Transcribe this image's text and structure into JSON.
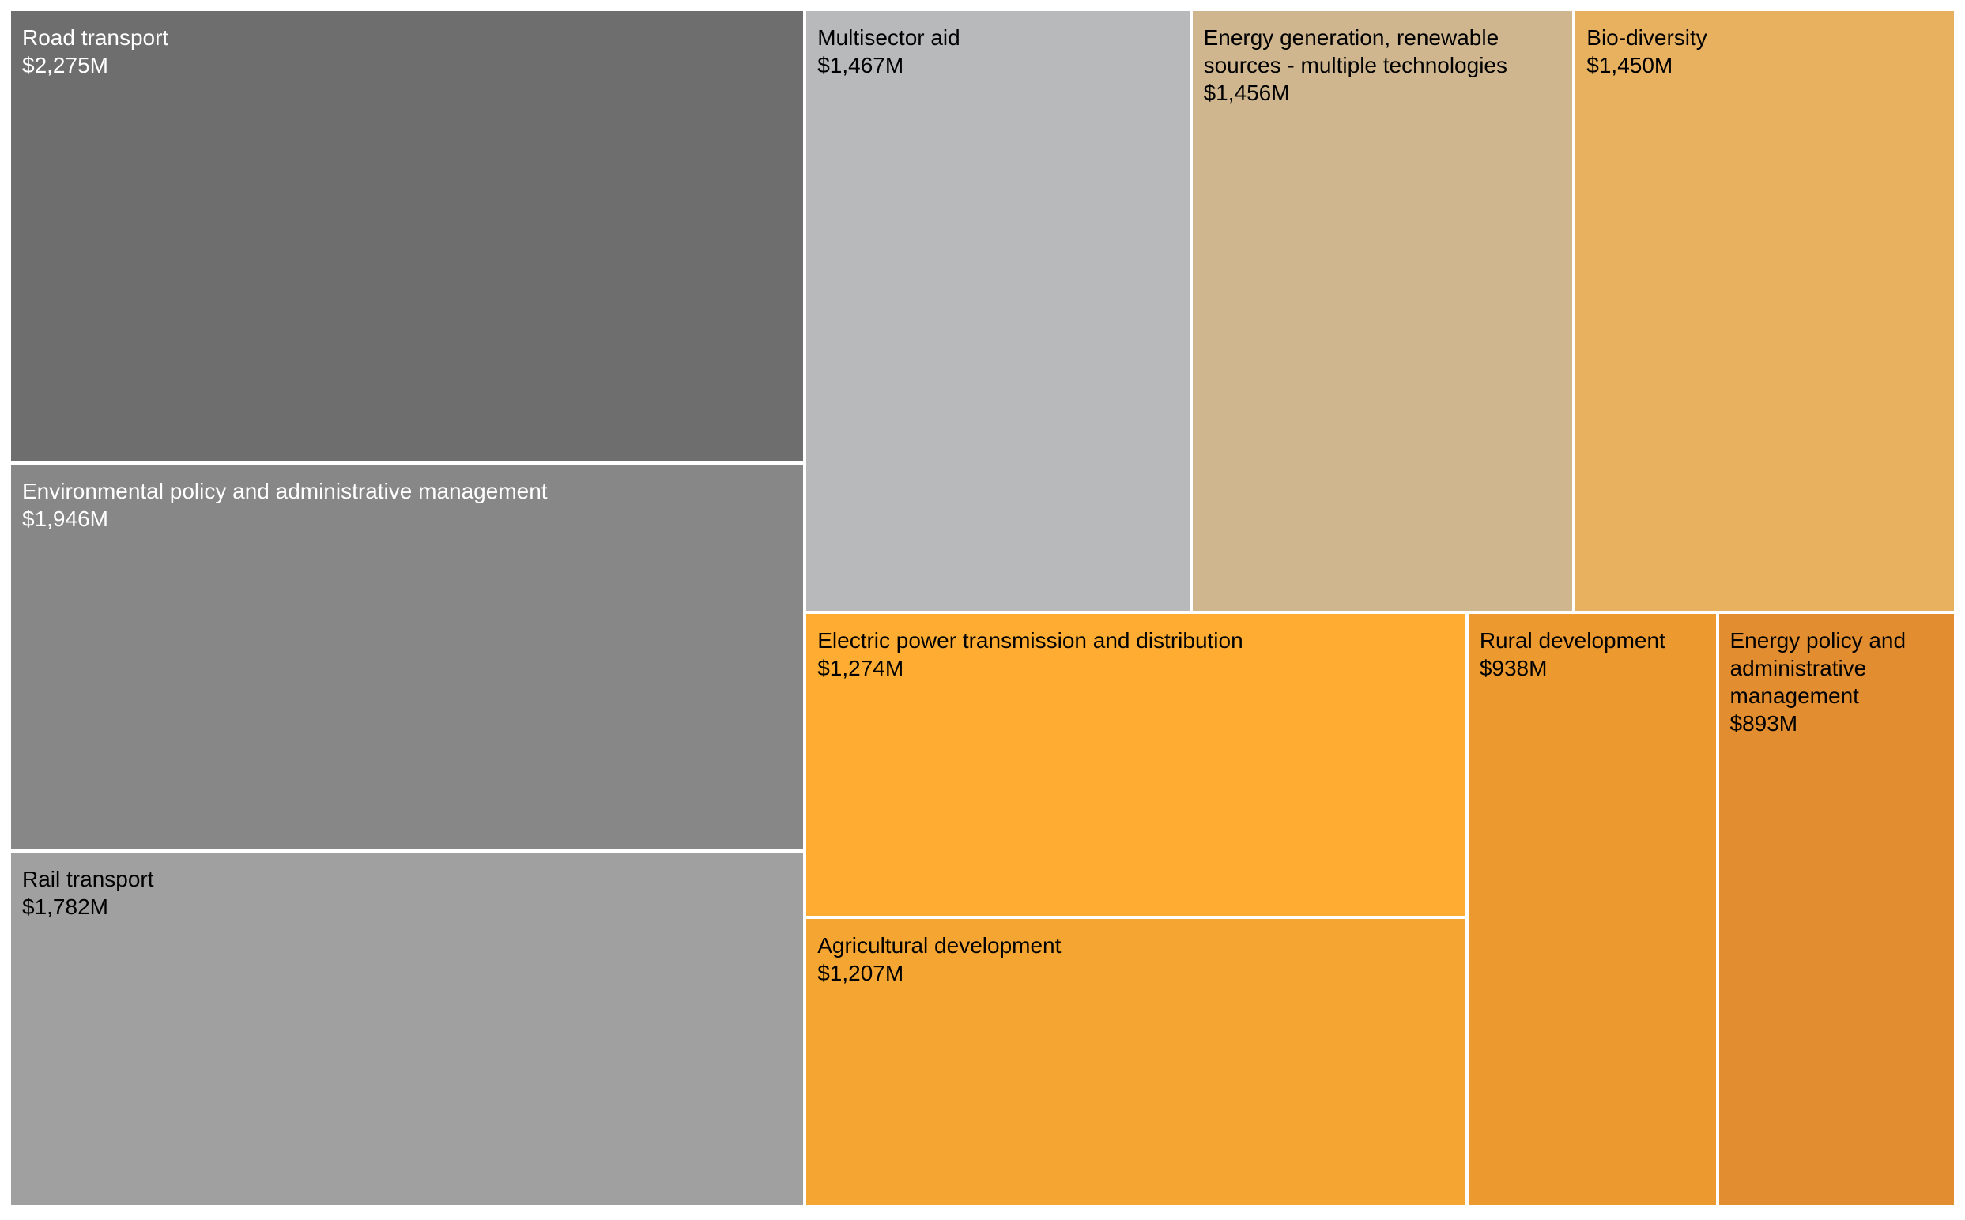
{
  "chart_data": {
    "type": "treemap",
    "title": "",
    "items": [
      {
        "label": "Road transport",
        "value": 2275,
        "value_label": "$2,275M",
        "color": "#6e6e6e",
        "text_color": "#ffffff"
      },
      {
        "label": "Environmental policy and administrative management",
        "value": 1946,
        "value_label": "$1,946M",
        "color": "#878787",
        "text_color": "#ffffff"
      },
      {
        "label": "Rail transport",
        "value": 1782,
        "value_label": "$1,782M",
        "color": "#a0a0a1",
        "text_color": "#000000"
      },
      {
        "label": "Multisector aid",
        "value": 1467,
        "value_label": "$1,467M",
        "color": "#b8b9ba",
        "text_color": "#000000"
      },
      {
        "label": "Energy generation, renewable sources - multiple technologies",
        "value": 1456,
        "value_label": "$1,456M",
        "color": "#cfb68f",
        "text_color": "#000000"
      },
      {
        "label": "Bio-diversity",
        "value": 1450,
        "value_label": "$1,450M",
        "color": "#e8b160",
        "text_color": "#000000"
      },
      {
        "label": "Electric power transmission and distribution",
        "value": 1274,
        "value_label": "$1,274M",
        "color": "#ffad32",
        "text_color": "#000000"
      },
      {
        "label": "Agricultural development",
        "value": 1207,
        "value_label": "$1,207M",
        "color": "#f5a531",
        "text_color": "#000000"
      },
      {
        "label": "Rural development",
        "value": 938,
        "value_label": "$938M",
        "color": "#ec9a30",
        "text_color": "#000000"
      },
      {
        "label": "Energy policy and administrative management",
        "value": 893,
        "value_label": "$893M",
        "color": "#e28e30",
        "text_color": "#000000"
      }
    ]
  }
}
